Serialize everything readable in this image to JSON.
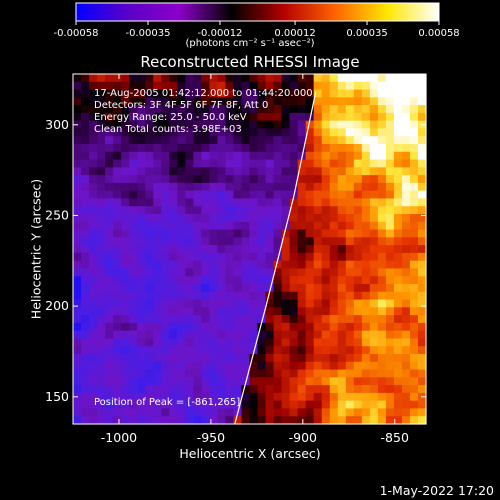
{
  "colorbar": {
    "tick_labels": [
      "-0.00058",
      "-0.00035",
      "-0.00012",
      "0.00012",
      "0.00035",
      "0.00058"
    ],
    "tick_values": [
      -0.00058,
      -0.00035,
      -0.00012,
      0.00012,
      0.00035,
      0.00058
    ],
    "range": [
      -0.00058,
      0.00058
    ],
    "unit_label": "(photons cm⁻² s⁻¹ asec⁻²)",
    "colors": [
      "#0000ff",
      "#5a00c8",
      "#8c00c8",
      "#000000",
      "#b40000",
      "#ff6400",
      "#ffe600",
      "#ffffff"
    ]
  },
  "chart_data": {
    "type": "heatmap",
    "title": "Reconstructed RHESSI Image",
    "xlabel": "Heliocentric X (arcsec)",
    "ylabel": "Heliocentric Y (arcsec)",
    "xlim": [
      -1025,
      -833
    ],
    "ylim": [
      135,
      328
    ],
    "x_ticks": [
      -1000,
      -950,
      -900,
      -850
    ],
    "x_tick_labels": [
      "-1000",
      "-950",
      "-900",
      "-850"
    ],
    "y_ticks": [
      150,
      200,
      250,
      300
    ],
    "y_tick_labels": [
      "150",
      "200",
      "250",
      "300"
    ],
    "peak": [
      -861,
      265
    ],
    "limb_curve": [
      [
        -937,
        135
      ],
      [
        -920,
        200
      ],
      [
        -905,
        260
      ],
      [
        -893,
        318
      ]
    ],
    "grid_cols": 44,
    "grid_rows": 45,
    "annotations": {
      "time_range": "17-Aug-2005 01:42:12.000 to 01:44:20.000",
      "detectors": "Detectors: 3F 4F 5F 6F 7F 8F, Att 0",
      "energy": "Energy Range: 25.0 - 50.0 keV",
      "method": "Clean     Total counts: 3.98E+03",
      "peak_text": "Position of Peak = [-861,265]"
    }
  },
  "footer": {
    "timestamp": "1-May-2022 17:20"
  }
}
